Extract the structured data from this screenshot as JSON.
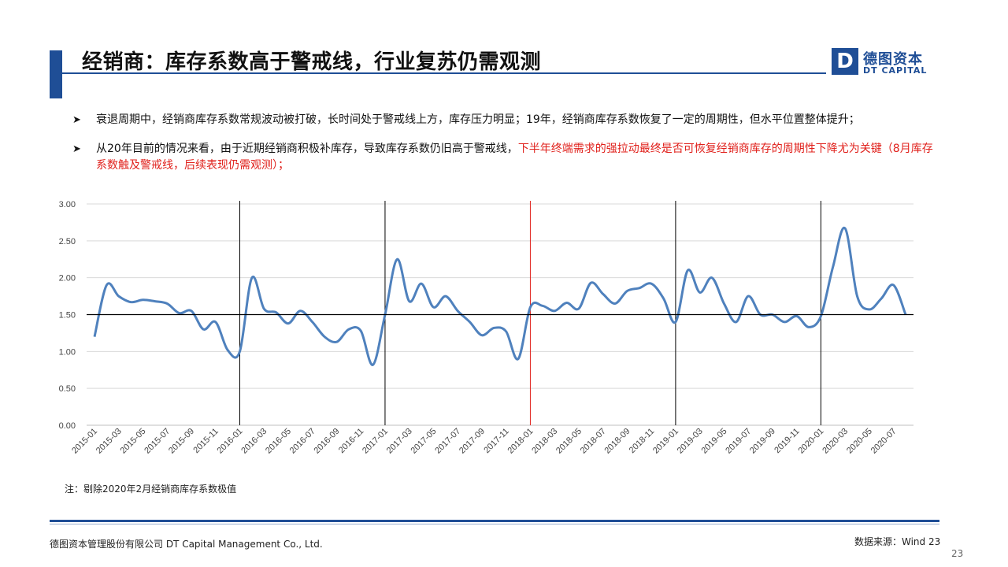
{
  "header": {
    "title": "经销商：库存系数高于警戒线，行业复苏仍需观测",
    "logo_mark": "D",
    "logo_cn": "德图资本",
    "logo_en": "DT CAPITAL",
    "brand_color": "#1f4e96"
  },
  "bullets": [
    {
      "text": "衰退周期中，经销商库存系数常规波动被打破，长时间处于警戒线上方，库存压力明显；19年，经销商库存系数恢复了一定的周期性，但水平位置整体提升；",
      "highlight": ""
    },
    {
      "text": "从20年目前的情况来看，由于近期经销商积极补库存，导致库存系数仍旧高于警戒线，",
      "highlight": "下半年终端需求的强拉动最终是否可恢复经销商库存的周期性下降尤为关键（8月库存系数触及警戒线，后续表现仍需观测）；"
    }
  ],
  "bullet_icon": "arrow-right-icon",
  "chart_data": {
    "type": "line",
    "title": "",
    "xlabel": "",
    "ylabel": "",
    "ylim": [
      0,
      3.0
    ],
    "yticks": [
      "0.00",
      "0.50",
      "1.00",
      "1.50",
      "2.00",
      "2.50",
      "3.00"
    ],
    "grid": true,
    "legend": "none",
    "line_color": "#4f81bd",
    "threshold": {
      "value": 1.5,
      "color": "#000000"
    },
    "vlines": [
      {
        "at": "2016-01",
        "color": "#000000"
      },
      {
        "at": "2017-01",
        "color": "#000000"
      },
      {
        "at": "2018-01",
        "color": "#e0201b"
      },
      {
        "at": "2019-01",
        "color": "#000000"
      },
      {
        "at": "2020-01",
        "color": "#000000"
      }
    ],
    "x": [
      "2015-01",
      "2015-02",
      "2015-03",
      "2015-04",
      "2015-05",
      "2015-06",
      "2015-07",
      "2015-08",
      "2015-09",
      "2015-10",
      "2015-11",
      "2015-12",
      "2016-01",
      "2016-02",
      "2016-03",
      "2016-04",
      "2016-05",
      "2016-06",
      "2016-07",
      "2016-08",
      "2016-09",
      "2016-10",
      "2016-11",
      "2016-12",
      "2017-01",
      "2017-02",
      "2017-03",
      "2017-04",
      "2017-05",
      "2017-06",
      "2017-07",
      "2017-08",
      "2017-09",
      "2017-10",
      "2017-11",
      "2017-12",
      "2018-01",
      "2018-02",
      "2018-03",
      "2018-04",
      "2018-05",
      "2018-06",
      "2018-07",
      "2018-08",
      "2018-09",
      "2018-10",
      "2018-11",
      "2018-12",
      "2019-01",
      "2019-02",
      "2019-03",
      "2019-04",
      "2019-05",
      "2019-06",
      "2019-07",
      "2019-08",
      "2019-09",
      "2019-10",
      "2019-11",
      "2019-12",
      "2020-01",
      "2020-02",
      "2020-03",
      "2020-04",
      "2020-05",
      "2020-06",
      "2020-07",
      "2020-08"
    ],
    "xticks": [
      "2015-01",
      "2015-03",
      "2015-05",
      "2015-07",
      "2015-09",
      "2015-11",
      "2016-01",
      "2016-03",
      "2016-05",
      "2016-07",
      "2016-09",
      "2016-11",
      "2017-01",
      "2017-03",
      "2017-05",
      "2017-07",
      "2017-09",
      "2017-11",
      "2018-01",
      "2018-03",
      "2018-05",
      "2018-07",
      "2018-09",
      "2018-11",
      "2019-01",
      "2019-03",
      "2019-05",
      "2019-07",
      "2019-09",
      "2019-11",
      "2020-01",
      "2020-03",
      "2020-05",
      "2020-07"
    ],
    "series": [
      {
        "values": [
          1.2,
          1.9,
          1.75,
          1.67,
          1.7,
          1.68,
          1.65,
          1.52,
          1.55,
          1.3,
          1.4,
          1.02,
          1.0,
          2.0,
          1.58,
          1.53,
          1.38,
          1.55,
          1.4,
          1.2,
          1.13,
          1.3,
          1.28,
          0.82,
          1.5,
          2.25,
          1.68,
          1.92,
          1.6,
          1.75,
          1.55,
          1.4,
          1.22,
          1.32,
          1.27,
          0.9,
          1.6,
          1.62,
          1.55,
          1.66,
          1.58,
          1.93,
          1.78,
          1.65,
          1.82,
          1.86,
          1.92,
          1.72,
          1.4,
          2.1,
          1.8,
          2.0,
          1.65,
          1.4,
          1.75,
          1.5,
          1.5,
          1.4,
          1.48,
          1.33,
          1.48,
          2.15,
          2.67,
          1.75,
          1.57,
          1.72,
          1.9,
          1.5
        ]
      }
    ]
  },
  "note": "注：剔除2020年2月经销商库存系数极值",
  "footer": {
    "company": "德图资本管理股份有限公司  DT Capital  Management  Co., Ltd.",
    "source": "数据来源：Wind  23",
    "page": "23"
  }
}
